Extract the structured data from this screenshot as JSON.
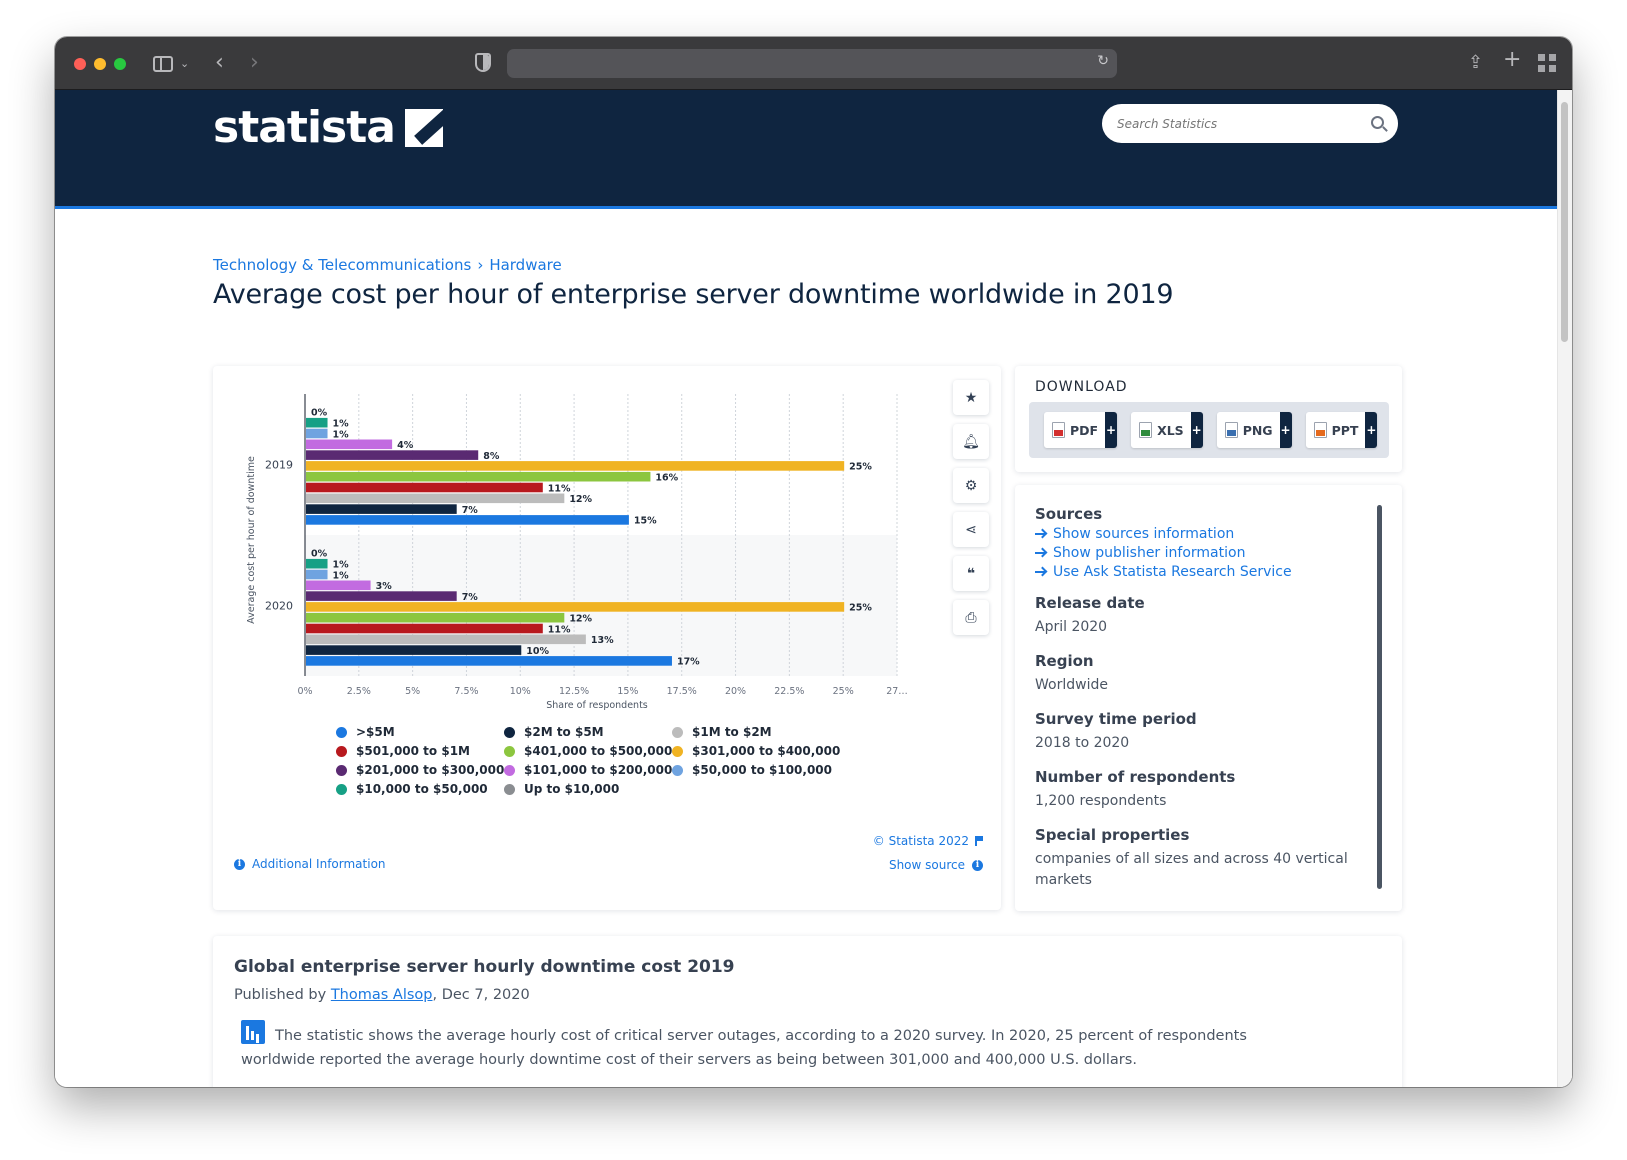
{
  "site": {
    "logo_text": "statista",
    "search_placeholder": "Search Statistics"
  },
  "breadcrumb": [
    "Technology & Telecommunications",
    "Hardware"
  ],
  "breadcrumb_separator": "›",
  "page_title": "Average cost per hour of enterprise server downtime worldwide in 2019",
  "chart_tools": [
    "star-icon",
    "bell-icon",
    "gear-icon",
    "share-icon",
    "quote-icon",
    "print-icon"
  ],
  "chart_data": {
    "type": "bar",
    "orientation": "horizontal",
    "ylabel": "Average cost per hour of downtime",
    "xlabel": "Share of respondents",
    "xlim": [
      0,
      27.5
    ],
    "x_ticks": [
      "0%",
      "2.5%",
      "5%",
      "7.5%",
      "10%",
      "12.5%",
      "15%",
      "17.5%",
      "20%",
      "22.5%",
      "25%",
      "27…"
    ],
    "categories": [
      "2019",
      "2020"
    ],
    "grid": true,
    "legend_placement": "bottom",
    "series": [
      {
        "name": "Up to $10,000",
        "color": "#8a8d91",
        "values": [
          0,
          0
        ],
        "labels": [
          "0%",
          "0%"
        ]
      },
      {
        "name": "$10,000 to $50,000",
        "color": "#16a085",
        "values": [
          1,
          1
        ],
        "labels": [
          "1%",
          "1%"
        ]
      },
      {
        "name": "$50,000 to $100,000",
        "color": "#6fa3e0",
        "values": [
          1,
          1
        ],
        "labels": [
          "1%",
          "1%"
        ]
      },
      {
        "name": "$101,000 to $200,000",
        "color": "#c26be0",
        "values": [
          4,
          3
        ],
        "labels": [
          "4%",
          "3%"
        ]
      },
      {
        "name": "$201,000 to $300,000",
        "color": "#5a2a72",
        "values": [
          8,
          7
        ],
        "labels": [
          "8%",
          "7%"
        ]
      },
      {
        "name": "$301,000 to $400,000",
        "color": "#f0b323",
        "values": [
          25,
          25
        ],
        "labels": [
          "25%",
          "25%"
        ]
      },
      {
        "name": "$401,000 to $500,000",
        "color": "#8cc63f",
        "values": [
          16,
          12
        ],
        "labels": [
          "16%",
          "12%"
        ]
      },
      {
        "name": "$501,000 to $1M",
        "color": "#b8191e",
        "values": [
          11,
          11
        ],
        "labels": [
          "11%",
          "11%"
        ]
      },
      {
        "name": "$1M to $2M",
        "color": "#bcbcbc",
        "values": [
          12,
          13
        ],
        "labels": [
          "12%",
          "13%"
        ]
      },
      {
        "name": "$2M to $5M",
        "color": "#0f2540",
        "values": [
          7,
          10
        ],
        "labels": [
          "7%",
          "10%"
        ]
      },
      {
        "name": ">$5M",
        "color": "#1b78e0",
        "values": [
          15,
          17
        ],
        "labels": [
          "15%",
          "17%"
        ]
      }
    ],
    "legend_order": [
      ">$5M",
      "$2M to $5M",
      "$1M to $2M",
      "$501,000 to $1M",
      "$401,000 to $500,000",
      "$301,000 to $400,000",
      "$201,000 to $300,000",
      "$101,000 to $200,000",
      "$50,000 to $100,000",
      "$10,000 to $50,000",
      "Up to $10,000"
    ]
  },
  "chart_footer": {
    "copyright": "© Statista 2022",
    "additional_info": "Additional Information",
    "show_source": "Show source"
  },
  "download": {
    "title": "DOWNLOAD",
    "buttons": [
      {
        "label": "PDF",
        "icon": "pdf-file-icon"
      },
      {
        "label": "XLS",
        "icon": "xls-file-icon"
      },
      {
        "label": "PNG",
        "icon": "png-file-icon"
      },
      {
        "label": "PPT",
        "icon": "ppt-file-icon"
      }
    ],
    "plus": "+"
  },
  "info": {
    "sources_title": "Sources",
    "links": [
      "Show sources information",
      "Show publisher information",
      "Use Ask Statista Research Service"
    ],
    "release_title": "Release date",
    "release_value": "April 2020",
    "region_title": "Region",
    "region_value": "Worldwide",
    "survey_title": "Survey time period",
    "survey_value": "2018 to 2020",
    "respondents_title": "Number of respondents",
    "respondents_value": "1,200 respondents",
    "special_title": "Special properties",
    "special_value": "companies of all sizes and across 40 vertical markets"
  },
  "description": {
    "title": "Global enterprise server hourly downtime cost 2019",
    "published_prefix": "Published by",
    "author": "Thomas Alsop",
    "date": ", Dec 7, 2020",
    "text": "The statistic shows the average hourly cost of critical server outages, according to a 2020 survey. In 2020, 25 percent of respondents worldwide reported the average hourly downtime cost of their servers as being between 301,000 and 400,000 U.S. dollars."
  }
}
